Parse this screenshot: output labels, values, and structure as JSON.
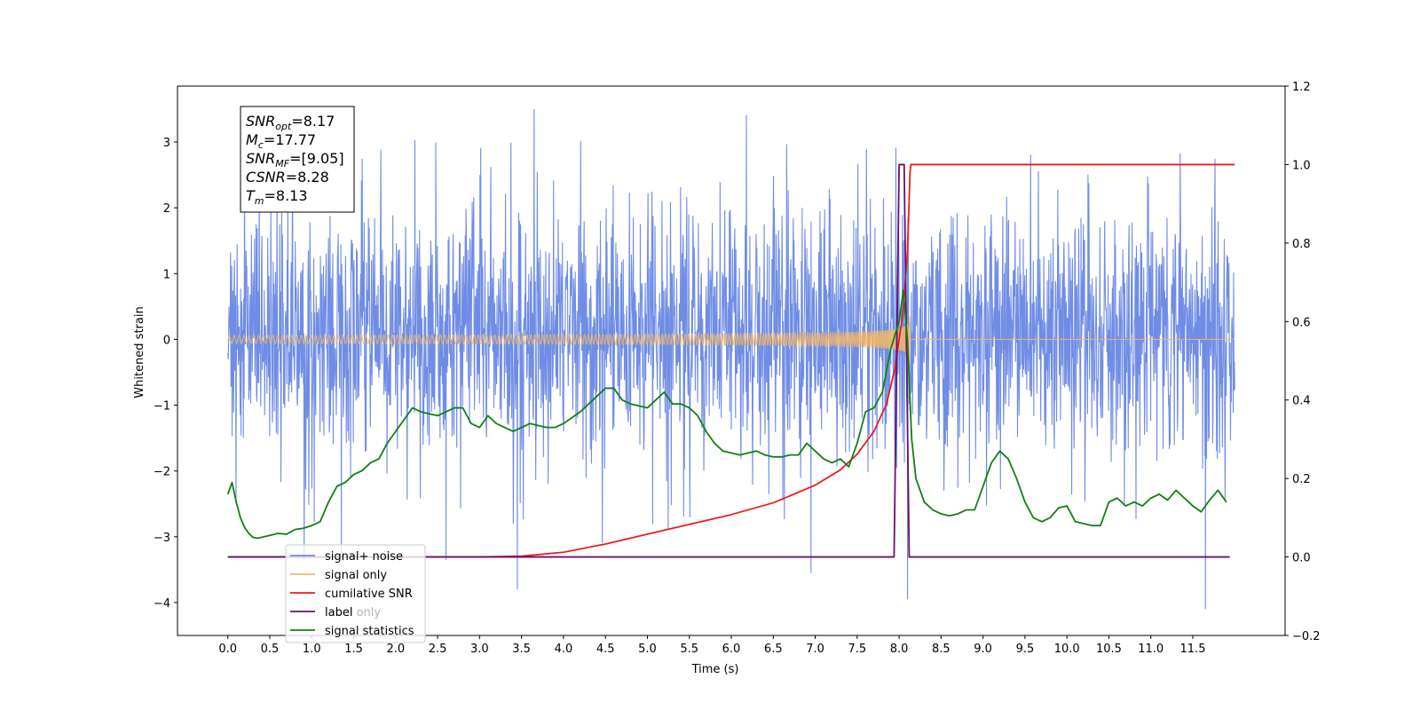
{
  "chart_data": {
    "type": "line",
    "xlabel": "Time (s)",
    "ylabel": "Whitened strain",
    "xlim": [
      -0.6,
      12.6
    ],
    "ylim": [
      -4.5,
      3.85
    ],
    "y2lim": [
      -0.2,
      1.2
    ],
    "x_ticks": [
      "0.0",
      "0.5",
      "1.0",
      "1.5",
      "2.0",
      "2.5",
      "3.0",
      "3.5",
      "4.0",
      "4.5",
      "5.0",
      "5.5",
      "6.0",
      "6.5",
      "7.0",
      "7.5",
      "8.0",
      "8.5",
      "9.0",
      "9.5",
      "10.0",
      "10.5",
      "11.0",
      "11.5"
    ],
    "y_ticks": [
      "3",
      "2",
      "1",
      "0",
      "−1",
      "−2",
      "−3",
      "−4"
    ],
    "y2_ticks": [
      "1.2",
      "1.0",
      "0.8",
      "0.6",
      "0.4",
      "0.2",
      "0.0",
      "−0.2"
    ],
    "grid": false,
    "legend_position": "lower-left",
    "annotation": [
      {
        "sym": "SNR",
        "sub": "opt",
        "val": "=8.17"
      },
      {
        "sym": "M",
        "sub": "c",
        "val": "=17.77"
      },
      {
        "sym": "SNR",
        "sub": "MF",
        "val": "=[9.05]"
      },
      {
        "sym": "CSNR",
        "sub": "",
        "val": "=8.28"
      },
      {
        "sym": "T",
        "sub": "m",
        "val": "=8.13"
      }
    ],
    "series": [
      {
        "name": "signal+ noise",
        "axis": "left",
        "color": "#6f8de6",
        "kind": "noise",
        "x_range": [
          0.0,
          12.0
        ],
        "typical_range": [
          -1.7,
          1.9
        ],
        "extremes": [
          [
            3.65,
            3.5
          ],
          [
            3.45,
            -3.8
          ],
          [
            11.65,
            -4.1
          ],
          [
            8.1,
            -3.95
          ],
          [
            6.95,
            -3.55
          ],
          [
            2.6,
            -3.35
          ]
        ]
      },
      {
        "name": "signal only",
        "axis": "left",
        "color": "#f5b965",
        "kind": "chirp",
        "x_range": [
          0.0,
          12.0
        ],
        "merger_time": 8.13,
        "peak_amplitude": 0.75
      },
      {
        "name": "cumilative SNR",
        "axis": "right",
        "color": "#ee1c1c",
        "x": [
          0.0,
          3.0,
          3.5,
          4.0,
          4.5,
          5.0,
          5.5,
          6.0,
          6.5,
          7.0,
          7.3,
          7.5,
          7.7,
          7.85,
          7.95,
          8.05,
          8.1,
          8.13,
          8.14,
          12.0
        ],
        "y": [
          0.0,
          0.0,
          0.002,
          0.012,
          0.033,
          0.058,
          0.083,
          0.108,
          0.138,
          0.183,
          0.222,
          0.262,
          0.32,
          0.39,
          0.48,
          0.63,
          0.78,
          0.98,
          1.0,
          1.0
        ]
      },
      {
        "name": "label",
        "axis": "right",
        "color": "#6b0f6b",
        "x": [
          0.0,
          7.94,
          8.0,
          8.06,
          8.12,
          11.94
        ],
        "y": [
          0.0,
          0.0,
          1.0,
          1.0,
          0.0,
          0.0
        ]
      },
      {
        "name": "signal statistics",
        "axis": "right",
        "color": "#118011",
        "x": [
          0.0,
          0.05,
          0.1,
          0.15,
          0.2,
          0.25,
          0.3,
          0.35,
          0.4,
          0.5,
          0.6,
          0.7,
          0.8,
          0.9,
          1.0,
          1.1,
          1.2,
          1.3,
          1.4,
          1.5,
          1.6,
          1.7,
          1.8,
          1.9,
          2.0,
          2.1,
          2.2,
          2.3,
          2.4,
          2.5,
          2.6,
          2.7,
          2.8,
          2.9,
          3.0,
          3.1,
          3.2,
          3.3,
          3.4,
          3.5,
          3.6,
          3.7,
          3.8,
          3.9,
          4.0,
          4.1,
          4.2,
          4.3,
          4.4,
          4.5,
          4.6,
          4.7,
          4.8,
          4.9,
          5.0,
          5.1,
          5.2,
          5.3,
          5.4,
          5.5,
          5.6,
          5.7,
          5.8,
          5.9,
          6.0,
          6.1,
          6.2,
          6.3,
          6.4,
          6.5,
          6.6,
          6.7,
          6.8,
          6.9,
          7.0,
          7.1,
          7.2,
          7.3,
          7.4,
          7.5,
          7.6,
          7.7,
          7.8,
          7.9,
          8.0,
          8.05,
          8.1,
          8.15,
          8.2,
          8.3,
          8.4,
          8.5,
          8.6,
          8.7,
          8.8,
          8.9,
          9.0,
          9.1,
          9.2,
          9.3,
          9.4,
          9.5,
          9.6,
          9.7,
          9.8,
          9.9,
          10.0,
          10.1,
          10.2,
          10.3,
          10.4,
          10.5,
          10.6,
          10.7,
          10.8,
          10.9,
          11.0,
          11.1,
          11.2,
          11.3,
          11.4,
          11.5,
          11.6,
          11.7,
          11.8,
          11.9
        ],
        "y": [
          0.16,
          0.19,
          0.14,
          0.1,
          0.075,
          0.06,
          0.05,
          0.048,
          0.05,
          0.055,
          0.06,
          0.058,
          0.07,
          0.073,
          0.08,
          0.09,
          0.14,
          0.18,
          0.19,
          0.21,
          0.22,
          0.24,
          0.25,
          0.29,
          0.32,
          0.35,
          0.38,
          0.37,
          0.365,
          0.36,
          0.37,
          0.38,
          0.38,
          0.34,
          0.33,
          0.36,
          0.34,
          0.33,
          0.32,
          0.33,
          0.34,
          0.335,
          0.33,
          0.33,
          0.34,
          0.355,
          0.37,
          0.39,
          0.41,
          0.43,
          0.43,
          0.4,
          0.39,
          0.385,
          0.38,
          0.4,
          0.42,
          0.39,
          0.39,
          0.38,
          0.36,
          0.32,
          0.29,
          0.27,
          0.265,
          0.26,
          0.265,
          0.27,
          0.26,
          0.255,
          0.255,
          0.26,
          0.26,
          0.29,
          0.27,
          0.25,
          0.24,
          0.25,
          0.23,
          0.29,
          0.37,
          0.38,
          0.42,
          0.53,
          0.6,
          0.68,
          0.55,
          0.3,
          0.2,
          0.14,
          0.12,
          0.11,
          0.105,
          0.11,
          0.12,
          0.12,
          0.18,
          0.24,
          0.27,
          0.25,
          0.2,
          0.14,
          0.1,
          0.09,
          0.1,
          0.125,
          0.13,
          0.09,
          0.085,
          0.08,
          0.08,
          0.14,
          0.15,
          0.13,
          0.14,
          0.13,
          0.15,
          0.16,
          0.145,
          0.17,
          0.15,
          0.13,
          0.115,
          0.145,
          0.17,
          0.14
        ]
      }
    ],
    "legend": [
      {
        "label": "signal+ noise",
        "color": "#6f8de6"
      },
      {
        "label": "signal only",
        "color": "#f5b965"
      },
      {
        "label": "cumilative SNR",
        "color": "#ee1c1c"
      },
      {
        "label": "label",
        "color": "#6b0f6b"
      },
      {
        "label": "signal statistics",
        "color": "#118011"
      }
    ],
    "legend_overlay_text": "label only"
  }
}
